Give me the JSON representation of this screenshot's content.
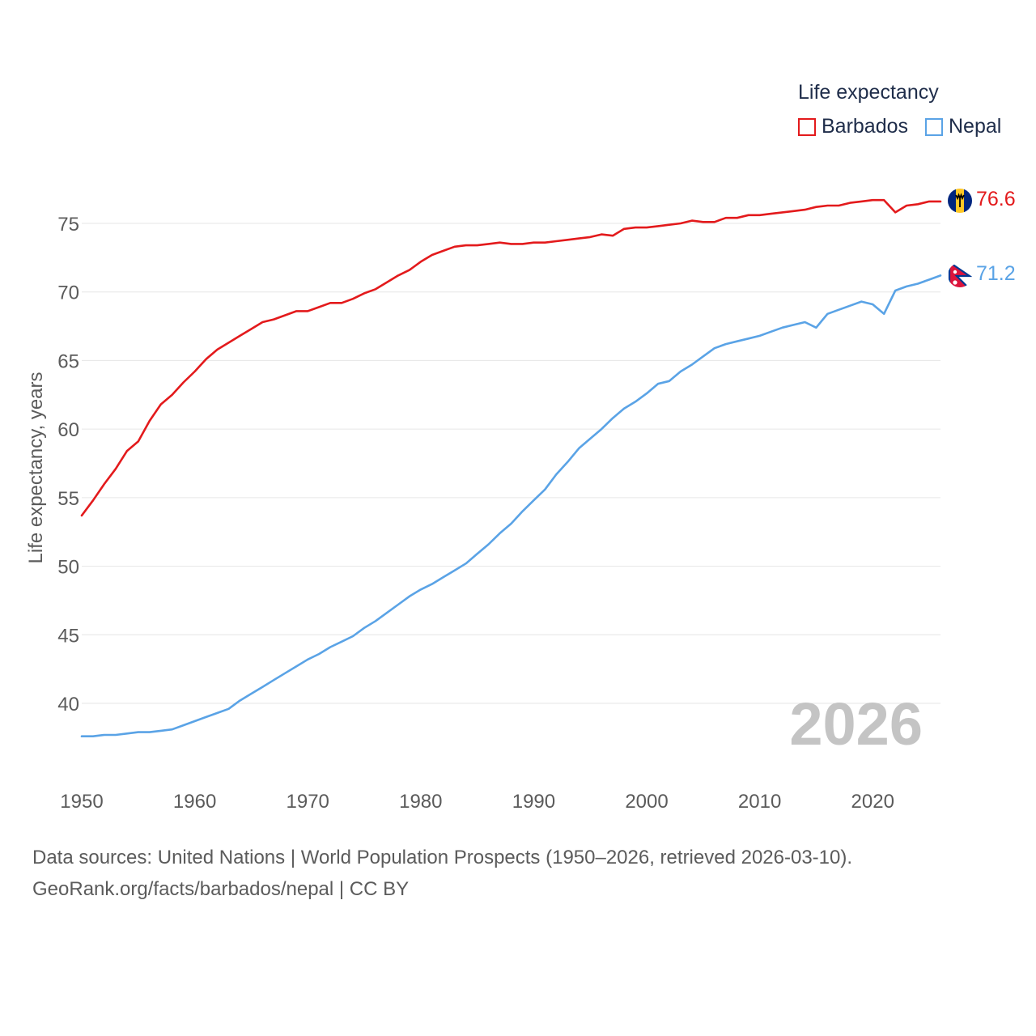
{
  "legend": {
    "title": "Life expectancy",
    "items": [
      {
        "label": "Barbados",
        "color": "#e31a1c"
      },
      {
        "label": "Nepal",
        "color": "#5aa3e6"
      }
    ]
  },
  "chart_data": {
    "type": "line",
    "ylabel": "Life expectancy, years",
    "xlabel": "",
    "xlim": [
      1950,
      2026
    ],
    "ylim": [
      35,
      80
    ],
    "x_ticks": [
      1950,
      1960,
      1970,
      1980,
      1990,
      2000,
      2010,
      2020
    ],
    "y_ticks": [
      40,
      45,
      50,
      55,
      60,
      65,
      70,
      75
    ],
    "grid": true,
    "year_watermark": "2026",
    "x": [
      1950,
      1951,
      1952,
      1953,
      1954,
      1955,
      1956,
      1957,
      1958,
      1959,
      1960,
      1961,
      1962,
      1963,
      1964,
      1965,
      1966,
      1967,
      1968,
      1969,
      1970,
      1971,
      1972,
      1973,
      1974,
      1975,
      1976,
      1977,
      1978,
      1979,
      1980,
      1981,
      1982,
      1983,
      1984,
      1985,
      1986,
      1987,
      1988,
      1989,
      1990,
      1991,
      1992,
      1993,
      1994,
      1995,
      1996,
      1997,
      1998,
      1999,
      2000,
      2001,
      2002,
      2003,
      2004,
      2005,
      2006,
      2007,
      2008,
      2009,
      2010,
      2011,
      2012,
      2013,
      2014,
      2015,
      2016,
      2017,
      2018,
      2019,
      2020,
      2021,
      2022,
      2023,
      2024,
      2025,
      2026
    ],
    "series": [
      {
        "name": "Barbados",
        "color": "#e31a1c",
        "end_label": "76.6",
        "values": [
          53.7,
          54.8,
          56.0,
          57.1,
          58.4,
          59.1,
          60.6,
          61.8,
          62.5,
          63.4,
          64.2,
          65.1,
          65.8,
          66.3,
          66.8,
          67.3,
          67.8,
          68.0,
          68.3,
          68.6,
          68.6,
          68.9,
          69.2,
          69.2,
          69.5,
          69.9,
          70.2,
          70.7,
          71.2,
          71.6,
          72.2,
          72.7,
          73.0,
          73.3,
          73.4,
          73.4,
          73.5,
          73.6,
          73.5,
          73.5,
          73.6,
          73.6,
          73.7,
          73.8,
          73.9,
          74.0,
          74.2,
          74.1,
          74.6,
          74.7,
          74.7,
          74.8,
          74.9,
          75.0,
          75.2,
          75.1,
          75.1,
          75.4,
          75.4,
          75.6,
          75.6,
          75.7,
          75.8,
          75.9,
          76.0,
          76.2,
          76.3,
          76.3,
          76.5,
          76.6,
          76.7,
          76.7,
          75.8,
          76.3,
          76.4,
          76.6,
          76.6
        ]
      },
      {
        "name": "Nepal",
        "color": "#5aa3e6",
        "end_label": "71.2",
        "values": [
          37.6,
          37.6,
          37.7,
          37.7,
          37.8,
          37.9,
          37.9,
          38.0,
          38.1,
          38.4,
          38.7,
          39.0,
          39.3,
          39.6,
          40.2,
          40.7,
          41.2,
          41.7,
          42.2,
          42.7,
          43.2,
          43.6,
          44.1,
          44.5,
          44.9,
          45.5,
          46.0,
          46.6,
          47.2,
          47.8,
          48.3,
          48.7,
          49.2,
          49.7,
          50.2,
          50.9,
          51.6,
          52.4,
          53.1,
          54.0,
          54.8,
          55.6,
          56.7,
          57.6,
          58.6,
          59.3,
          60.0,
          60.8,
          61.5,
          62.0,
          62.6,
          63.3,
          63.5,
          64.2,
          64.7,
          65.3,
          65.9,
          66.2,
          66.4,
          66.6,
          66.8,
          67.1,
          67.4,
          67.6,
          67.8,
          67.4,
          68.4,
          68.7,
          69.0,
          69.3,
          69.1,
          68.4,
          70.1,
          70.4,
          70.6,
          70.9,
          71.2
        ]
      }
    ]
  },
  "footer": {
    "line1": "Data sources: United Nations | World Population Prospects (1950–2026, retrieved 2026-03-10).",
    "line2": "GeoRank.org/facts/barbados/nepal | CC BY"
  }
}
